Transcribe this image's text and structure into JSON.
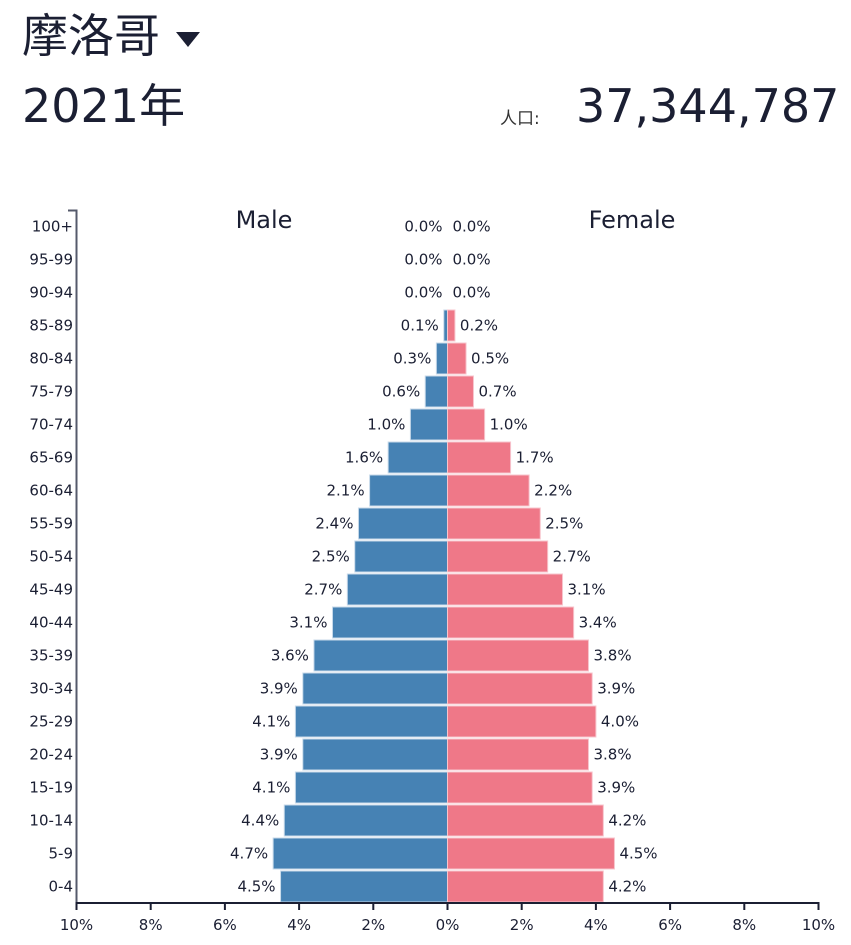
{
  "header": {
    "country": "摩洛哥",
    "year": "2021年",
    "population_label": "人口:",
    "population_value": "37,344,787"
  },
  "colors": {
    "male": "#4682b4",
    "female": "#ef7888",
    "text": "#1b1f33",
    "axis": "#555a6b"
  },
  "chart_data": {
    "type": "bar",
    "orientation": "horizontal",
    "title": "摩洛哥 2021年",
    "xlabel": "",
    "ylabel": "",
    "xlim": [
      -10,
      10
    ],
    "x_ticks": [
      "10%",
      "8%",
      "6%",
      "4%",
      "2%",
      "0%",
      "2%",
      "4%",
      "6%",
      "8%",
      "10%"
    ],
    "categories": [
      "100+",
      "95-99",
      "90-94",
      "85-89",
      "80-84",
      "75-79",
      "70-74",
      "65-69",
      "60-64",
      "55-59",
      "50-54",
      "45-49",
      "40-44",
      "35-39",
      "30-34",
      "25-29",
      "20-24",
      "15-19",
      "10-14",
      "5-9",
      "0-4"
    ],
    "series": [
      {
        "name": "Male",
        "values": [
          0.0,
          0.0,
          0.0,
          0.1,
          0.3,
          0.6,
          1.0,
          1.6,
          2.1,
          2.4,
          2.5,
          2.7,
          3.1,
          3.6,
          3.9,
          4.1,
          3.9,
          4.1,
          4.4,
          4.7,
          4.5
        ]
      },
      {
        "name": "Female",
        "values": [
          0.0,
          0.0,
          0.0,
          0.2,
          0.5,
          0.7,
          1.0,
          1.7,
          2.2,
          2.5,
          2.7,
          3.1,
          3.4,
          3.8,
          3.9,
          4.0,
          3.8,
          3.9,
          4.2,
          4.5,
          4.2
        ]
      }
    ],
    "legend": [
      "Male",
      "Female"
    ],
    "grid": false
  }
}
